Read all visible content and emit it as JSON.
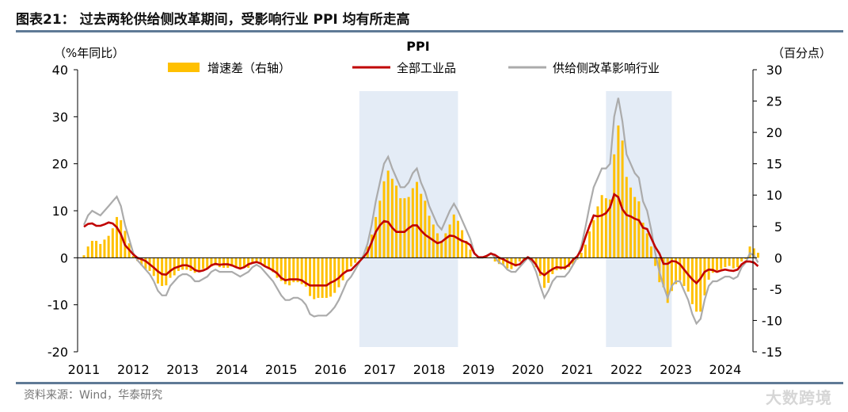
{
  "title": "图表21：  过去两轮供给侧改革期间，受影响行业 PPI 均有所走高",
  "source": "资料来源：Wind，华泰研究",
  "watermark": "大数跨境",
  "chart_data": {
    "type": "bar+line",
    "title": "PPI",
    "ylabel_left": "（%年同比）",
    "ylabel_right": "（百分点）",
    "ylim_left": [
      -20,
      40
    ],
    "ylim_right": [
      -15,
      30
    ],
    "yticks_left": [
      "40",
      "30",
      "20",
      "10",
      "0",
      "-10",
      "-20"
    ],
    "yticks_right": [
      "30",
      "25",
      "20",
      "15",
      "10",
      "5",
      "0",
      "-5",
      "-10",
      "-15"
    ],
    "xticks": [
      "2011",
      "2012",
      "2013",
      "2014",
      "2015",
      "2016",
      "2017",
      "2018",
      "2019",
      "2020",
      "2021",
      "2022",
      "2023",
      "2024"
    ],
    "start": "2011-01",
    "frequency": "monthly",
    "shaded_periods": [
      [
        "2016-08",
        "2018-08"
      ],
      [
        "2021-08",
        "2022-12"
      ]
    ],
    "legend": [
      "增速差（右轴）",
      "全部工业品",
      "供给侧改革影响行业"
    ],
    "colors": {
      "gap": "#FFC000",
      "all": "#C00000",
      "supply": "#ABABAB",
      "shade": "#E4ECF6"
    },
    "series": [
      {
        "name": "全部工业品",
        "axis": "left",
        "values": [
          6.6,
          7.2,
          7.3,
          6.8,
          6.8,
          7.1,
          7.5,
          7.3,
          6.5,
          5.0,
          2.7,
          1.7,
          0.7,
          0.0,
          -0.3,
          -0.7,
          -1.4,
          -2.1,
          -2.9,
          -3.5,
          -3.6,
          -2.8,
          -2.2,
          -1.9,
          -1.6,
          -1.6,
          -1.9,
          -2.6,
          -2.9,
          -2.7,
          -2.3,
          -1.6,
          -1.3,
          -1.5,
          -1.4,
          -1.4,
          -1.6,
          -2.0,
          -2.3,
          -2.0,
          -1.4,
          -1.1,
          -0.9,
          -1.2,
          -1.8,
          -2.2,
          -2.7,
          -3.3,
          -4.3,
          -4.8,
          -4.6,
          -4.6,
          -4.6,
          -4.8,
          -5.4,
          -5.9,
          -5.9,
          -5.9,
          -5.9,
          -5.9,
          -5.3,
          -4.9,
          -4.3,
          -3.4,
          -2.8,
          -2.6,
          -1.7,
          -0.8,
          0.1,
          1.2,
          3.3,
          5.5,
          6.9,
          7.8,
          7.6,
          6.4,
          5.5,
          5.5,
          5.5,
          6.3,
          6.9,
          6.9,
          5.8,
          4.9,
          4.3,
          3.7,
          3.1,
          3.4,
          4.1,
          4.7,
          4.6,
          4.1,
          3.6,
          3.3,
          2.7,
          0.9,
          0.1,
          0.1,
          0.4,
          0.9,
          0.6,
          0.0,
          -0.3,
          -0.8,
          -1.2,
          -1.6,
          -1.4,
          -0.5,
          0.1,
          -0.4,
          -1.5,
          -3.1,
          -3.7,
          -3.0,
          -2.4,
          -2.0,
          -2.1,
          -2.1,
          -1.5,
          -0.4,
          0.3,
          1.7,
          4.4,
          6.8,
          9.0,
          8.8,
          9.0,
          9.5,
          10.7,
          13.5,
          12.9,
          10.3,
          9.1,
          8.8,
          8.3,
          8.0,
          6.4,
          6.1,
          4.2,
          2.3,
          0.9,
          -1.3,
          -1.3,
          -0.7,
          -0.8,
          -1.4,
          -2.5,
          -3.6,
          -4.6,
          -5.4,
          -4.4,
          -3.0,
          -2.5,
          -2.6,
          -3.0,
          -2.7,
          -2.5,
          -2.7,
          -2.8,
          -2.5,
          -1.4,
          -0.8,
          -0.8,
          -1.0,
          -1.8
        ]
      },
      {
        "name": "供给侧改革影响行业",
        "axis": "left",
        "values": [
          7,
          9,
          10,
          9.5,
          9,
          10,
          11,
          12,
          13,
          11,
          7,
          4,
          1,
          -0.5,
          -1.5,
          -2.5,
          -3.5,
          -5,
          -7,
          -8,
          -8,
          -6,
          -5,
          -4,
          -3.5,
          -3.5,
          -4,
          -5,
          -5,
          -4.5,
          -4,
          -3,
          -2.5,
          -3,
          -3,
          -3,
          -3,
          -3.5,
          -4,
          -3.5,
          -3,
          -2,
          -1.5,
          -2,
          -3,
          -4,
          -5,
          -6.5,
          -8,
          -9,
          -9,
          -8.5,
          -8.5,
          -9,
          -10,
          -12,
          -12.5,
          -12.3,
          -12.3,
          -12.3,
          -11.5,
          -10.5,
          -9,
          -7,
          -5,
          -4,
          -2.5,
          -1,
          0.5,
          3,
          7,
          12,
          16,
          20,
          21.5,
          19,
          17,
          15,
          15,
          16,
          18,
          19,
          16,
          14,
          11,
          9,
          7,
          6,
          8,
          10,
          11.5,
          10,
          8,
          6,
          4,
          1,
          0,
          0,
          0.5,
          1,
          0,
          -1,
          -1.5,
          -2.5,
          -3,
          -3,
          -2,
          -1,
          0,
          -1,
          -3,
          -6,
          -8.5,
          -7,
          -5,
          -4,
          -4,
          -4,
          -3,
          -1.5,
          0,
          2.5,
          6.5,
          11,
          15,
          17,
          19,
          19,
          20,
          30,
          34,
          29,
          22,
          20,
          18,
          17,
          12,
          10,
          6,
          1,
          -3,
          -6,
          -8.5,
          -6,
          -5,
          -5,
          -7,
          -9,
          -12,
          -14,
          -13,
          -9,
          -6,
          -5,
          -5,
          -4.5,
          -4,
          -4,
          -4.5,
          -4,
          -2,
          -1,
          1,
          0.5,
          -1
        ]
      },
      {
        "name": "增速差（右轴）",
        "axis": "right",
        "derived": "供给侧改革影响行业 - 全部工业品"
      }
    ]
  }
}
